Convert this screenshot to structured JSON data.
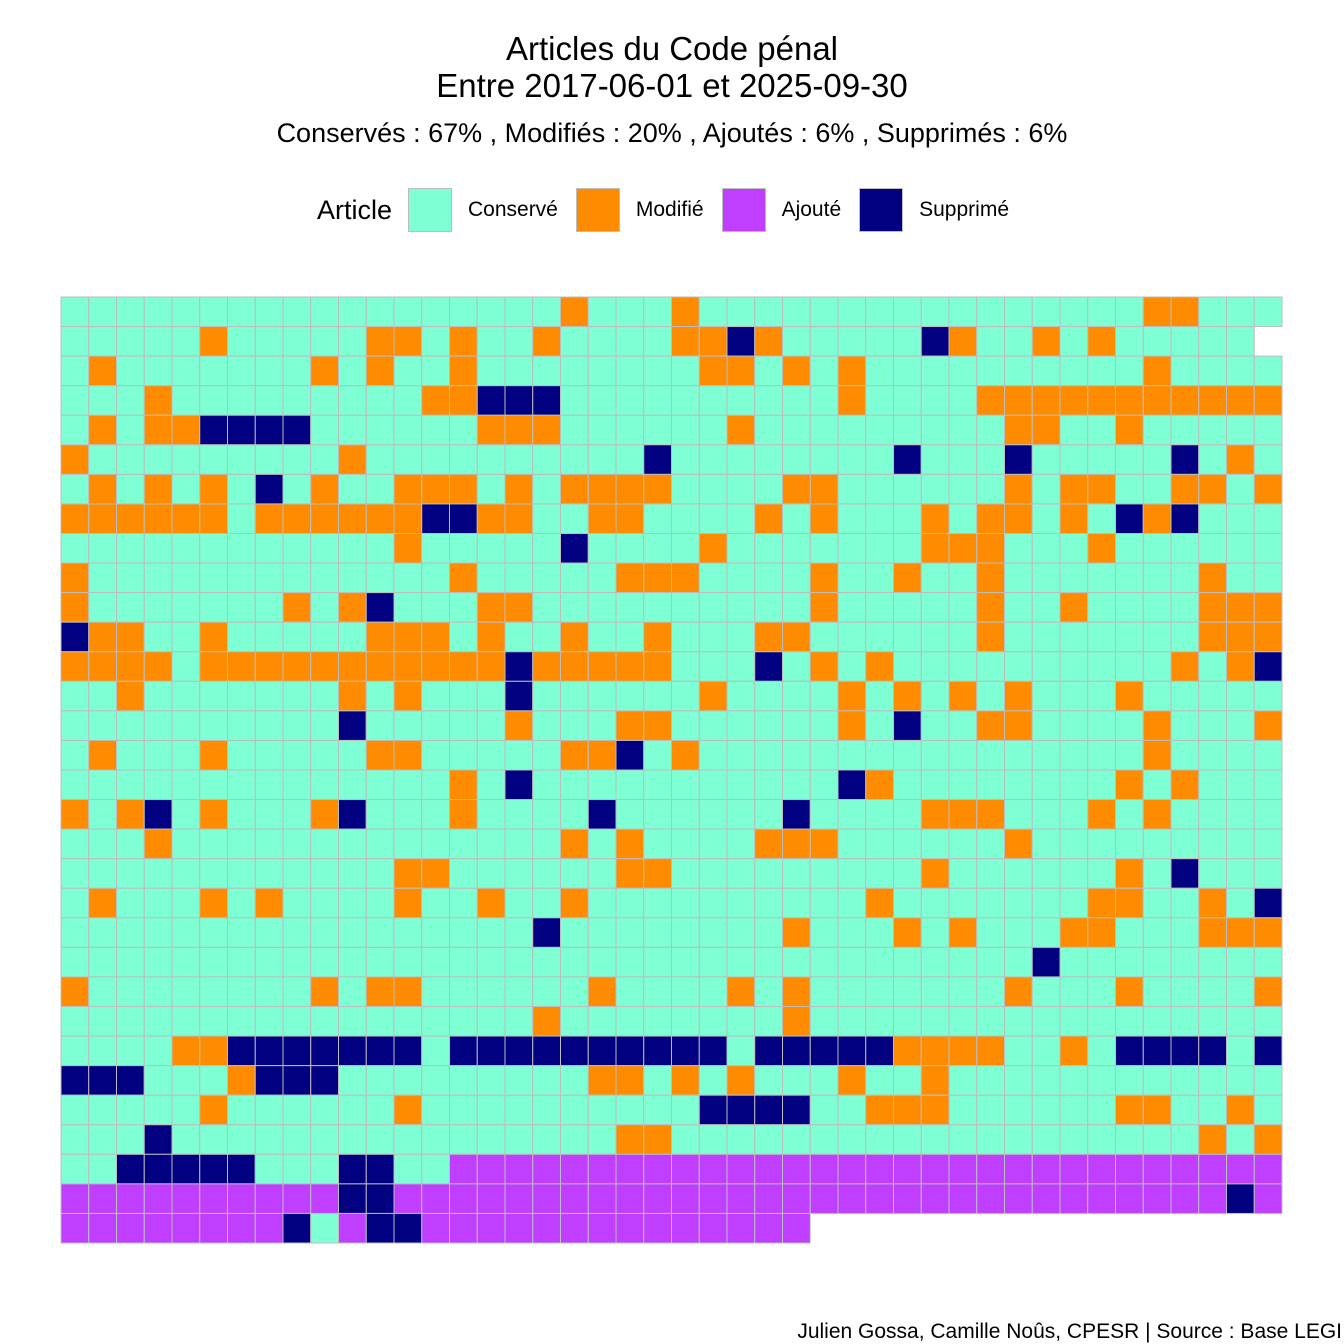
{
  "chart_data": {
    "type": "heatmap",
    "title": [
      "Articles du Code pénal",
      "Entre 2017-06-01 et 2025-09-30"
    ],
    "subtitle": "Conservés :  67% , Modifiés :  20% , Ajoutés :  6% , Supprimés :  6%",
    "legend": {
      "title": "Article",
      "position": "top",
      "entries": [
        {
          "key": "C",
          "label": "Conservé",
          "color": "#7FFFD4"
        },
        {
          "key": "M",
          "label": "Modifié",
          "color": "#FF8C00"
        },
        {
          "key": "A",
          "label": "Ajouté",
          "color": "#BF3EFF"
        },
        {
          "key": "S",
          "label": "Supprimé",
          "color": "#000080"
        }
      ]
    },
    "columns": 44,
    "grid_color": "#bdbdbd",
    "rows": [
      "CCCCCCCCCCCCCCCCCCMCCCMCCCCCCCCCCCCCCCCMMCCCC",
      "CCCCCMCCCCCMMCMCCMCCCCMMSMCCCCCSMCCMCMCCCCC",
      "CMCCCCCCCMCMCCMCCCCCCCCMMCMCMCCCCCCCCCCMCCCC",
      "CCCMCCCCCCCCCMMSSSCCCCCCCCCCMCCCCMMMMMMMMMMM",
      "CMCMMSSSSCCCCCCMMMCCCCCCMCCCCCCCCCMMCCMCCCCC",
      "MCCCCCCCCCMCCCCCCCCCCSCCCCCCCCSCCCSCCCCCSCMC",
      "CMCMCMCSCMCCMMMCMCMMMMCCCCMMCCCCCCMCMMCCMMCM",
      "MMMMMMCMMMMMMSSMMCCMMCCCCMCMCCCMCMMCMCSMSCCC",
      "CCCCCCCCCCCCMCCCCCSCCCCMCCCCCCCMMMCCCMCCCCCC",
      "MCCCCCCCCCCCCCMCCCCCMMMCCCCMCCMCCMCCCCCCCMCC",
      "MCCCCCCCMCMSCCCMMCCCCCCCCCCMCCCCCMCCMCCCCMMMC",
      "SMMCCMCCCCCMMMCMCCMCCMCCCMMCCCCCCMCCCCCCCMMMM",
      "MMMMCMMMMMMMMMMMSMMMMMCCCSCMCMCCCCCCCCCCMCMSC",
      "CCMCCCCCCCMCMCCCSCCCCCCMCCCCMCMCMCMCCCMCCCCC",
      "CCCCCCCCCCSCCCCCMCCCMMCCCCCCMCSCCMMCCCCMCCCM",
      "CMCCCMCCCCCMMCCCCCMMSCMCCCCCCCCCCCCCCCCMCCCCC",
      "CCCCCCCCCCCCCCMCSCCCCCCCCCCCSMCCCCCCCCMCMCCCC",
      "MCMSCMCCCMSCCCMCCCCSCCCCCCSCCCCMMMCCCMCMCCCCC",
      "CCCMCCCCCCCCCCCCCCMCMCCCCMMMCCCCCCMCCCCCCCCC",
      "CCCCCCCCCCCCMMCCCCCCMMCCCCCCCCCMCCCCCCMCSCCCC",
      "CMCCCMCMCCCCMCCMCCMCCCCCCCCCCMCCCCCCCMMCCMCS",
      "CCCCCCCCCCCCCCCCCSCCCCCCCCMCCCMCMCCCMMCCCMMMM",
      "CCCCCCCCCCCCCCCCCCCCCCCCCCCCCCCCCCCSCCCCCCCC",
      "MCCCCCCCCMCMMCCCCCCMCCCCMCMCCCCCCCMCCCMCCCCM",
      "CCCCCCCCCCCCCCCCCMCCCCCCCCMCCCCCCCCCCCCCCCCC",
      "CCCCMMSSSSSSSCSSSSSSSSSSCSSSSSMMMMCCMCSSSSCS",
      "SSSCCCMSSSCCCCCCCCCMMCMCMCCCMCCMCCCCCCCCCCCC",
      "CCCCCMCCCCCCMCCCCCCCCCCSSSSCCMMMCCCCCCMMCCMC",
      "CCCSCCCCCCCCCCCCCCCCMMCCCCCCCCCCCCCCCCCCCMCM",
      "CCSSSSSCCCSSCCAAAAAAAAAAAAAAAAAAAAAAAAAAAAAA",
      "AAAAAAAAAASSAAAAAAAAAAAAAAAAAAAAAAAAAAAAAASASAA",
      "AAAAAAAAScASSAAAAAAAAAAAAAA"
    ]
  },
  "caption": "Julien Gossa, Camille Noûs, CPESR  |  Source : Base LEGI"
}
